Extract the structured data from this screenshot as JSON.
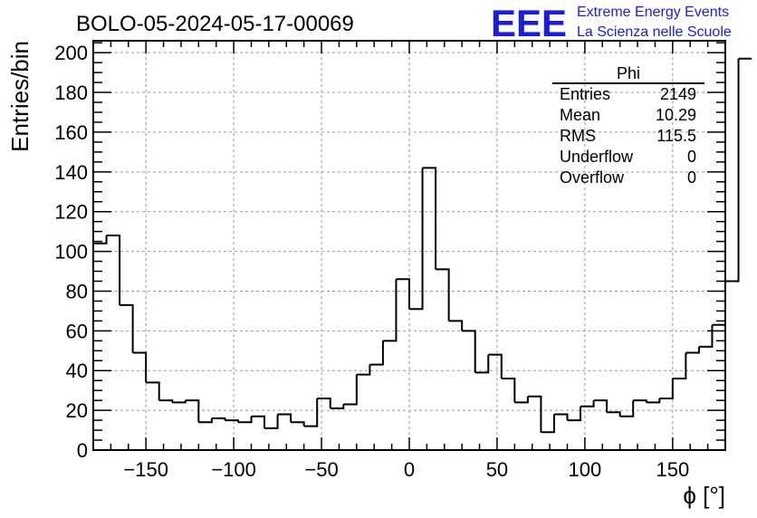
{
  "header": {
    "title": "BOLO-05-2024-05-17-00069",
    "logo": "EEE",
    "brand_line1": "Extreme Energy Events",
    "brand_line2": "La Scienza nelle Scuole"
  },
  "stats": {
    "name": "Phi",
    "rows": [
      {
        "label": "Entries",
        "value": "2149"
      },
      {
        "label": "Mean",
        "value": "10.29"
      },
      {
        "label": "RMS",
        "value": "115.5"
      },
      {
        "label": "Underflow",
        "value": "0"
      },
      {
        "label": "Overflow",
        "value": "0"
      }
    ]
  },
  "chart_data": {
    "type": "bar",
    "histogram": true,
    "title": "BOLO-05-2024-05-17-00069",
    "xlabel": "ϕ [°]",
    "ylabel": "Entries/bin",
    "xlim": [
      -180,
      180
    ],
    "ylim": [
      0,
      206
    ],
    "bin_width": 7.5,
    "bin_edges_start": -180,
    "x_ticks": [
      -150,
      -100,
      -50,
      0,
      50,
      100,
      150
    ],
    "y_ticks": [
      0,
      20,
      40,
      60,
      80,
      100,
      120,
      140,
      160,
      180,
      200
    ],
    "grid": true,
    "line_color": "#000000",
    "values": [
      104,
      108,
      73,
      49,
      34,
      25,
      24,
      25,
      14,
      16,
      15,
      14,
      17,
      11,
      18,
      14,
      12,
      26,
      21,
      23,
      38,
      43,
      55,
      86,
      71,
      142,
      91,
      65,
      60,
      39,
      48,
      36,
      24,
      27,
      9,
      18,
      15,
      22,
      25,
      19,
      17,
      25,
      24,
      26,
      36,
      49,
      52,
      63,
      85,
      197
    ]
  }
}
